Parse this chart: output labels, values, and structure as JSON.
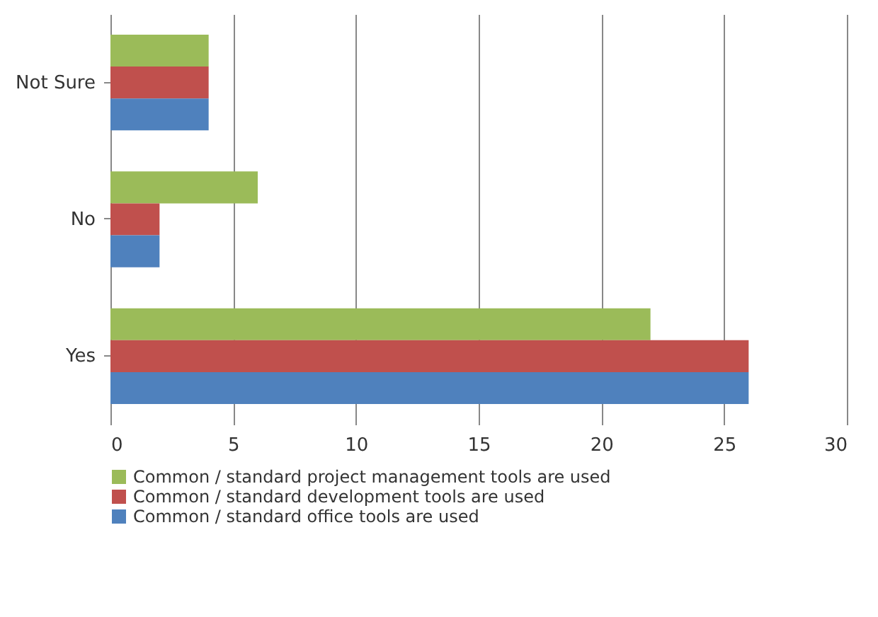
{
  "chart_data": {
    "type": "bar",
    "orientation": "horizontal",
    "categories": [
      "Not Sure",
      "No",
      "Yes"
    ],
    "series": [
      {
        "name": "Common / standard project management tools are used",
        "color": "#9bbb59",
        "values": [
          4,
          6,
          22
        ]
      },
      {
        "name": "Common / standard development tools are used",
        "color": "#c0504d",
        "values": [
          4,
          2,
          26
        ]
      },
      {
        "name": "Common / standard office tools are used",
        "color": "#4f81bd",
        "values": [
          4,
          2,
          26
        ]
      }
    ],
    "xlim": [
      0,
      30
    ],
    "xticks": [
      0,
      5,
      10,
      15,
      20,
      25,
      30
    ],
    "grid": "x",
    "legend": "bottom"
  }
}
